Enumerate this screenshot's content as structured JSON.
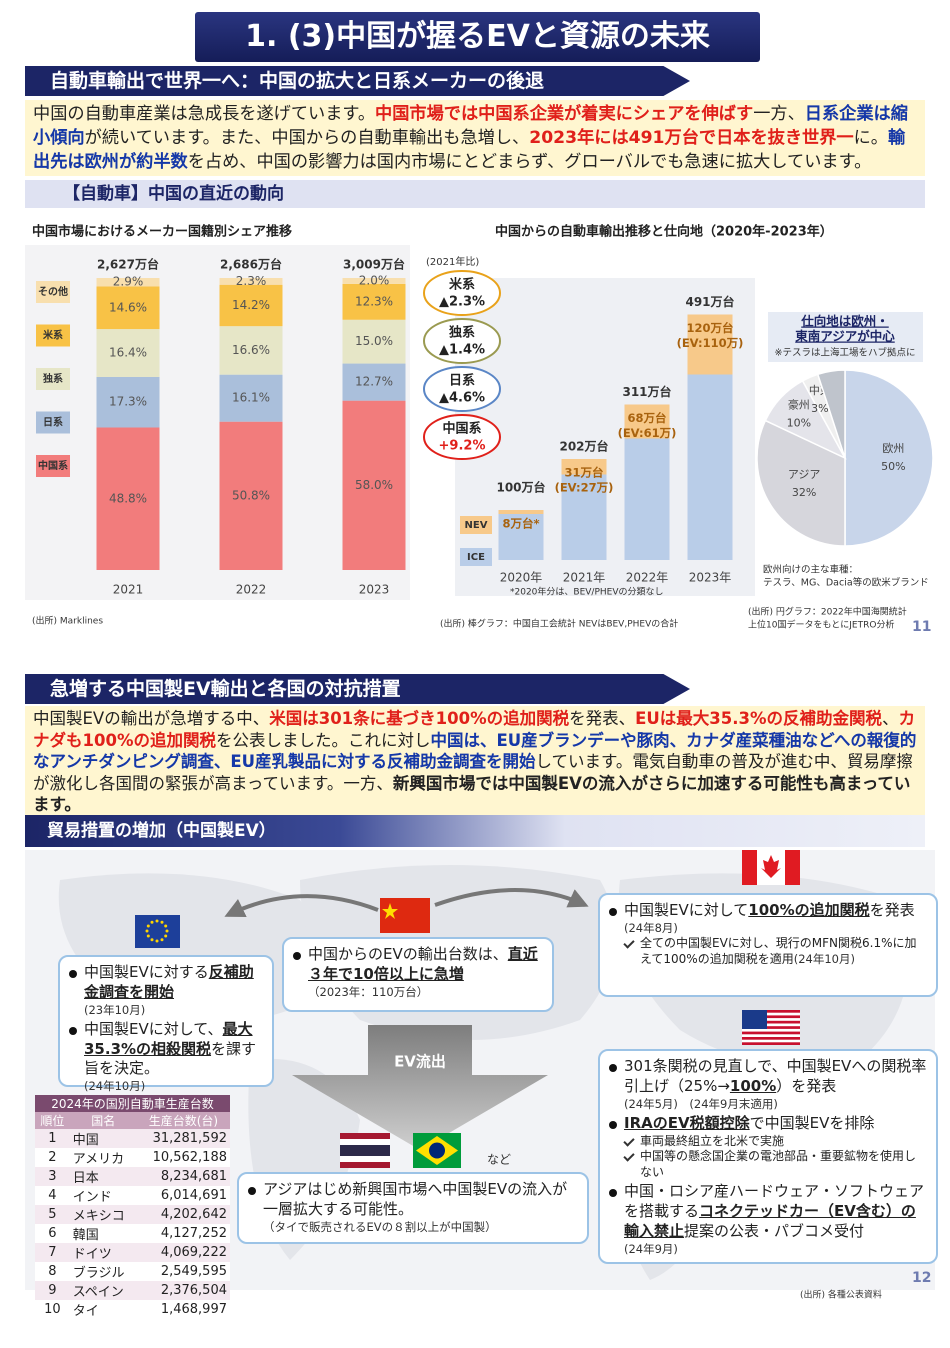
{
  "header": {
    "title": "1. (3)中国が握るEVと資源の未来"
  },
  "section1": {
    "heading": "自動車輸出で世界一へ：中国の拡大と日系メーカーの後退",
    "paragraph": [
      {
        "text": "中国の自動車産業は急成長を遂げています。",
        "style": "plain"
      },
      {
        "text": "中国市場では中国系企業が着実にシェアを伸ばす",
        "style": "red"
      },
      {
        "text": "一方、",
        "style": "plain"
      },
      {
        "text": "日系企業は縮小傾向",
        "style": "blue"
      },
      {
        "text": "が続いています。また、中国からの自動車輸出も急増し、",
        "style": "plain"
      },
      {
        "text": "2023年には491万台で日本を抜き世界一",
        "style": "red"
      },
      {
        "text": "に。",
        "style": "plain"
      },
      {
        "text": "輸出先は欧州が約半数",
        "style": "blue"
      },
      {
        "text": "を占め、中国の影響力は国内市場にとどまらず、グローバルでも急速に拡大しています。",
        "style": "plain"
      }
    ],
    "subheading": "【自動車】中国の直近の動向",
    "page_number": "11"
  },
  "chart_data": [
    {
      "type": "bar",
      "stacked": true,
      "title": "中国市場におけるメーカー国籍別シェア推移",
      "categories": [
        "2021",
        "2022",
        "2023"
      ],
      "total_labels": [
        "2,627万台",
        "2,686万台",
        "3,009万台"
      ],
      "ylim": [
        0,
        100
      ],
      "series": [
        {
          "name": "中国系",
          "color": "#f27c7c",
          "values": [
            48.8,
            50.8,
            58.0
          ],
          "value_labels": [
            "48.8%",
            "50.8%",
            "58.0%"
          ]
        },
        {
          "name": "日系",
          "color": "#aabfdb",
          "values": [
            17.3,
            16.1,
            12.7
          ],
          "value_labels": [
            "17.3%",
            "16.1%",
            "12.7%"
          ]
        },
        {
          "name": "独系",
          "color": "#e6e6c7",
          "values": [
            16.4,
            16.6,
            15.0
          ],
          "value_labels": [
            "16.4%",
            "16.6%",
            "15.0%"
          ]
        },
        {
          "name": "米系",
          "color": "#f8c246",
          "values": [
            14.6,
            14.2,
            12.3
          ],
          "value_labels": [
            "14.6%",
            "14.2%",
            "12.3%"
          ]
        },
        {
          "name": "その他",
          "color": "#f8dfae",
          "values": [
            2.9,
            2.3,
            2.0
          ],
          "value_labels": [
            "2.9%",
            "2.3%",
            "2.0%"
          ]
        }
      ],
      "changes_title": "(2021年比)",
      "changes": [
        {
          "name": "米系",
          "label": "▲2.3%",
          "color": "#e9a21a"
        },
        {
          "name": "独系",
          "label": "▲1.4%",
          "color": "#9a9a50"
        },
        {
          "name": "日系",
          "label": "▲4.6%",
          "color": "#5a86c6"
        },
        {
          "name": "中国系",
          "label": "+9.2%",
          "color": "#e0201a"
        }
      ],
      "source": "(出所) Marklines"
    },
    {
      "type": "bar",
      "stacked": true,
      "title": "中国からの自動車輸出推移と仕向地（2020年-2023年）",
      "categories": [
        "2020年",
        "2021年",
        "2022年",
        "2023年"
      ],
      "total_labels": [
        "100万台",
        "202万台",
        "311万台",
        "491万台"
      ],
      "ylim": [
        0,
        500
      ],
      "series": [
        {
          "name": "ICE",
          "color": "#b9cde8",
          "values": [
            92,
            171,
            243,
            371
          ]
        },
        {
          "name": "NEV",
          "color": "#f7c98a",
          "values": [
            8,
            31,
            68,
            120
          ],
          "value_labels": [
            "8万台*",
            "31万台",
            "68万台",
            "120万台"
          ],
          "ev_labels": [
            null,
            "(EV:27万)",
            "(EV:61万)",
            "(EV:110万)"
          ]
        }
      ],
      "footnote": "*2020年分は、BEV/PHEVの分類なし",
      "source": "(出所) 棒グラフ：中国自工会統計 NEVはBEV,PHEVの合計"
    },
    {
      "type": "pie",
      "title_lines": [
        "仕向地は欧州・",
        "東南アジアが中心"
      ],
      "subtitle": "※テスラは上海工場をハブ拠点に",
      "categories": [
        "欧州",
        "アジア",
        "豪州",
        "中東",
        null
      ],
      "values": [
        50,
        32,
        10,
        3,
        5
      ],
      "value_labels": [
        "50%",
        "32%",
        "10%",
        "3%",
        null
      ],
      "colors": [
        "#c8d5ea",
        "#d6d6dc",
        "#e4e4ea",
        "#efefef",
        "#bfc4cc"
      ],
      "note_lines": [
        "欧州向けの主な車種：",
        "テスラ、MG、Dacia等の欧米ブランド"
      ],
      "source_lines": [
        "(出所) 円グラフ：2022年中国海関統計",
        "上位10国データをもとにJETRO分析"
      ]
    }
  ],
  "section2": {
    "heading": "急増する中国製EV輸出と各国の対抗措置",
    "paragraph": [
      {
        "text": "中国製EVの輸出が急増する中、",
        "style": "plain"
      },
      {
        "text": "米国は301条に基づき100%の追加関税",
        "style": "red"
      },
      {
        "text": "を発表、",
        "style": "plain"
      },
      {
        "text": "EUは最大35.3%の反補助金関税",
        "style": "red"
      },
      {
        "text": "、",
        "style": "plain"
      },
      {
        "text": "カナダも100%の追加関税",
        "style": "red"
      },
      {
        "text": "を公表しました。これに対し",
        "style": "plain"
      },
      {
        "text": "中国は、EU産ブランデーや豚肉、カナダ産菜種油などへの報復的なアンチダンピング調査、EU産乳製品に対する反補助金調査を開始",
        "style": "blue"
      },
      {
        "text": "しています。電気自動車の普及が進む中、貿易摩擦が激化し各国間の緊張が高まっています。一方、",
        "style": "plain"
      },
      {
        "text": "新興国市場では中国製EVの流入がさらに加速する可能性も高まっています。",
        "style": "bold"
      }
    ],
    "subheading": "貿易措置の増加（中国製EV）",
    "china": [
      {
        "segments": [
          {
            "text": "中国からのEVの輸出台数は、",
            "style": "plain"
          },
          {
            "text": "直近３年で10倍以上に急増",
            "style": "underline"
          }
        ],
        "note": "（2023年：110万台）"
      }
    ],
    "eu": [
      {
        "segments": [
          {
            "text": "中国製EVに対する",
            "style": "plain"
          },
          {
            "text": "反補助金調査を開始",
            "style": "underline"
          }
        ],
        "note": "(23年10月)"
      },
      {
        "segments": [
          {
            "text": "中国製EVに対して、",
            "style": "plain"
          },
          {
            "text": "最大35.3%の相殺関税",
            "style": "underline"
          },
          {
            "text": "を課す旨を決定。",
            "style": "plain"
          }
        ],
        "note": "(24年10月)"
      }
    ],
    "canada": [
      {
        "segments": [
          {
            "text": "中国製EVに対して",
            "style": "plain"
          },
          {
            "text": "100%の追加関税",
            "style": "underline"
          },
          {
            "text": "を発表",
            "style": "plain"
          }
        ],
        "note": "(24年8月)",
        "subs": [
          {
            "text": "全ての中国製EVに対し、現行のMFN関税6.1%に加えて100%の追加関税を適用",
            "note": "(24年10月)"
          }
        ]
      }
    ],
    "us": [
      {
        "segments": [
          {
            "text": "301条関税の見直しで、中国製EVへの関税率引上げ（25%→",
            "style": "plain"
          },
          {
            "text": "100%",
            "style": "underline"
          },
          {
            "text": "）を発表",
            "style": "plain"
          }
        ],
        "note": "(24年5月)　(24年9月末適用)"
      },
      {
        "segments": [
          {
            "text": "IRAのEV税額控除",
            "style": "underline"
          },
          {
            "text": "で中国製EVを排除",
            "style": "plain"
          }
        ],
        "subs": [
          {
            "text": "車両最終組立を北米で実施"
          },
          {
            "text": "中国等の懸念国企業の電池部品・重要鉱物を使用しない"
          }
        ]
      },
      {
        "segments": [
          {
            "text": "中国・ロシア産ハードウェア・ソフトウェアを搭載する",
            "style": "plain"
          },
          {
            "text": "コネクテッドカー（EV含む）の輸入禁止",
            "style": "underline"
          },
          {
            "text": "提案の公表・パブコメ受付",
            "style": "plain"
          }
        ],
        "note": "(24年9月)"
      }
    ],
    "asia": [
      {
        "segments": [
          {
            "text": "アジアはじめ新興国市場へ中国製EVの流入が一層拡大する可能性。",
            "style": "plain"
          }
        ],
        "note": "（タイで販売されるEVの８割以上が中国製）"
      }
    ],
    "arrow_label": "EV流出",
    "etc": "など",
    "source": "(出所) 各種公表資料",
    "page_number": "12"
  },
  "table": {
    "title": "2024年の国別自動車生産台数",
    "headers": [
      "順位",
      "国名",
      "生産台数(台)"
    ],
    "rows": [
      [
        1,
        "中国",
        "31,281,592"
      ],
      [
        2,
        "アメリカ",
        "10,562,188"
      ],
      [
        3,
        "日本",
        "8,234,681"
      ],
      [
        4,
        "インド",
        "6,014,691"
      ],
      [
        5,
        "メキシコ",
        "4,202,642"
      ],
      [
        6,
        "韓国",
        "4,127,252"
      ],
      [
        7,
        "ドイツ",
        "4,069,222"
      ],
      [
        8,
        "ブラジル",
        "2,549,595"
      ],
      [
        9,
        "スペイン",
        "2,376,504"
      ],
      [
        10,
        "タイ",
        "1,468,997"
      ]
    ]
  }
}
